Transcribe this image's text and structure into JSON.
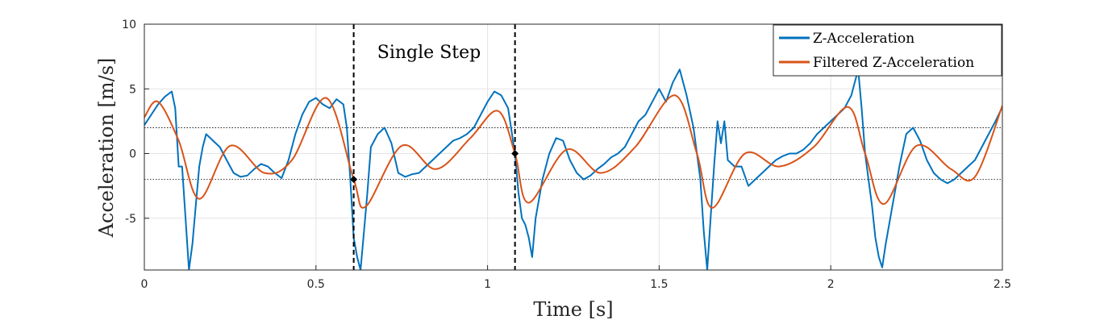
{
  "chart_data": {
    "type": "line",
    "title": "",
    "xlabel": "Time [s]",
    "ylabel": "Acceleration [m/s]",
    "xlim": [
      0,
      2.5
    ],
    "ylim": [
      -9,
      10
    ],
    "grid": true,
    "x_ticks": [
      0,
      0.5,
      1,
      1.5,
      2,
      2.5
    ],
    "x_tick_labels": [
      "0",
      "0.5",
      "1",
      "1.5",
      "2",
      "2.5"
    ],
    "y_ticks": [
      -5,
      0,
      5,
      10
    ],
    "y_tick_labels": [
      "-5",
      "0",
      "5",
      "10"
    ],
    "legend_position": "top-right",
    "series": [
      {
        "name": "Z-Acceleration",
        "color": "#0072BD",
        "x": [
          0,
          0.02,
          0.04,
          0.06,
          0.08,
          0.09,
          0.1,
          0.11,
          0.12,
          0.13,
          0.14,
          0.15,
          0.16,
          0.17,
          0.18,
          0.2,
          0.22,
          0.24,
          0.26,
          0.28,
          0.3,
          0.32,
          0.34,
          0.36,
          0.38,
          0.4,
          0.42,
          0.44,
          0.46,
          0.48,
          0.5,
          0.52,
          0.54,
          0.56,
          0.58,
          0.59,
          0.6,
          0.61,
          0.62,
          0.63,
          0.64,
          0.65,
          0.66,
          0.68,
          0.7,
          0.72,
          0.74,
          0.76,
          0.78,
          0.8,
          0.82,
          0.84,
          0.86,
          0.88,
          0.9,
          0.92,
          0.94,
          0.96,
          0.98,
          1.0,
          1.02,
          1.04,
          1.06,
          1.08,
          1.09,
          1.1,
          1.11,
          1.12,
          1.13,
          1.14,
          1.16,
          1.18,
          1.2,
          1.22,
          1.24,
          1.26,
          1.28,
          1.3,
          1.32,
          1.34,
          1.36,
          1.38,
          1.4,
          1.42,
          1.44,
          1.46,
          1.48,
          1.5,
          1.52,
          1.54,
          1.56,
          1.58,
          1.6,
          1.62,
          1.63,
          1.64,
          1.65,
          1.66,
          1.67,
          1.68,
          1.69,
          1.7,
          1.72,
          1.74,
          1.76,
          1.78,
          1.8,
          1.82,
          1.84,
          1.86,
          1.88,
          1.9,
          1.92,
          1.94,
          1.96,
          1.98,
          2.0,
          2.02,
          2.04,
          2.06,
          2.08,
          2.09,
          2.1,
          2.11,
          2.12,
          2.13,
          2.14,
          2.15,
          2.16,
          2.18,
          2.2,
          2.22,
          2.24,
          2.26,
          2.28,
          2.3,
          2.32,
          2.34,
          2.36,
          2.38,
          2.4,
          2.42,
          2.44,
          2.46,
          2.48,
          2.5
        ],
        "y": [
          2.2,
          3.0,
          3.8,
          4.4,
          4.8,
          3.5,
          -1.0,
          -1.0,
          -5.0,
          -9.0,
          -7.0,
          -4.0,
          -1.0,
          0.5,
          1.5,
          1.0,
          0.5,
          -0.5,
          -1.5,
          -1.8,
          -1.7,
          -1.2,
          -0.8,
          -1.0,
          -1.5,
          -1.9,
          -0.5,
          1.5,
          3.0,
          4.0,
          4.3,
          3.8,
          3.5,
          4.2,
          3.8,
          2.0,
          -2.0,
          -6.5,
          -8.0,
          -9.0,
          -6.0,
          -3.0,
          0.5,
          1.5,
          2.0,
          0.8,
          -1.5,
          -1.8,
          -1.6,
          -1.5,
          -1.0,
          -0.5,
          0.0,
          0.5,
          1.0,
          1.2,
          1.5,
          2.0,
          3.0,
          4.0,
          4.8,
          4.5,
          3.5,
          0.0,
          -3.0,
          -5.0,
          -5.5,
          -6.5,
          -8.0,
          -5.0,
          -2.0,
          0.0,
          1.2,
          1.0,
          -0.5,
          -1.5,
          -2.0,
          -1.7,
          -1.2,
          -0.8,
          -0.3,
          0.0,
          0.5,
          1.5,
          2.5,
          3.0,
          4.0,
          5.0,
          4.0,
          5.5,
          6.5,
          4.5,
          2.0,
          -2.0,
          -6.0,
          -9.0,
          -5.0,
          -1.0,
          2.5,
          0.8,
          2.5,
          -0.5,
          -1.0,
          -1.0,
          -2.5,
          -2.0,
          -1.5,
          -1.0,
          -0.5,
          -0.2,
          0.0,
          0.0,
          0.3,
          0.8,
          1.5,
          2.0,
          2.5,
          3.0,
          3.5,
          4.5,
          6.5,
          3.5,
          0.0,
          -2.0,
          -4.0,
          -6.5,
          -8.0,
          -8.8,
          -7.0,
          -4.0,
          -1.0,
          1.5,
          2.0,
          1.0,
          -0.5,
          -1.5,
          -2.0,
          -2.3,
          -2.0,
          -1.5,
          -1.0,
          -0.5,
          0.5,
          1.5,
          2.5,
          3.6
        ]
      },
      {
        "name": "Filtered Z-Acceleration",
        "color": "#D95319",
        "x": [
          0,
          0.04,
          0.1,
          0.16,
          0.25,
          0.35,
          0.43,
          0.53,
          0.61,
          0.645,
          0.75,
          0.85,
          0.95,
          1.03,
          1.08,
          1.12,
          1.23,
          1.33,
          1.43,
          1.545,
          1.61,
          1.655,
          1.75,
          1.85,
          1.95,
          2.05,
          2.1,
          2.155,
          2.25,
          2.35,
          2.42,
          2.5
        ],
        "y": [
          2.8,
          4.0,
          1.0,
          -3.5,
          0.6,
          -1.5,
          -0.5,
          4.3,
          -2.0,
          -4.1,
          0.6,
          -1.2,
          1.2,
          3.3,
          0.0,
          -3.8,
          0.3,
          -1.5,
          0.5,
          4.5,
          0.0,
          -4.2,
          0.0,
          -1.0,
          0.5,
          3.6,
          0.0,
          -3.9,
          0.6,
          -1.2,
          -1.8,
          3.7
        ]
      }
    ],
    "markers": [
      {
        "x": 0.61,
        "y": -2.0
      },
      {
        "x": 1.08,
        "y": 0.0
      }
    ],
    "reference_lines_y": [
      2.0,
      -2.0
    ],
    "step_boundaries_x": [
      0.61,
      1.08
    ],
    "annotations": [
      {
        "text": "Single Step"
      }
    ]
  }
}
